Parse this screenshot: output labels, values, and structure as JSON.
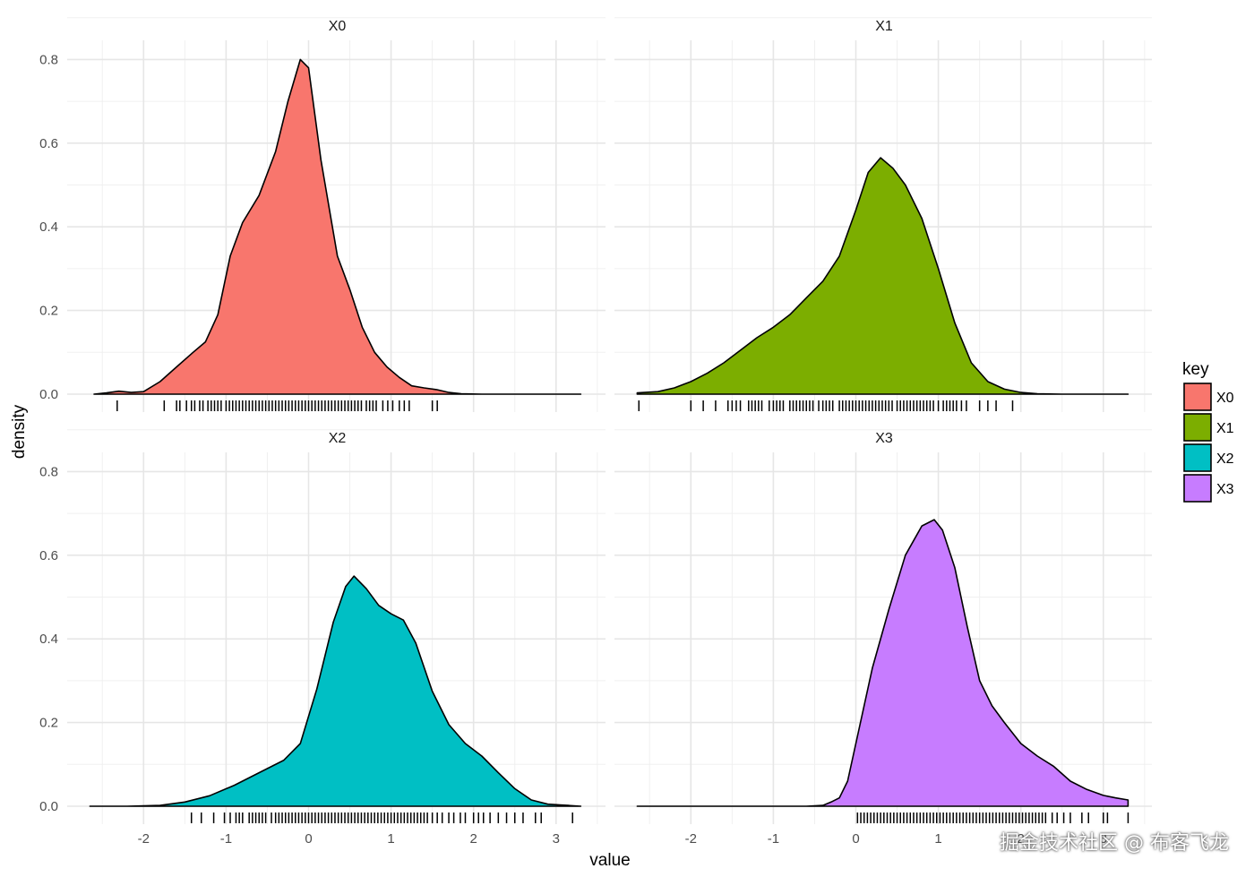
{
  "chart_data": {
    "type": "area",
    "xlabel": "value",
    "ylabel": "density",
    "xlim": [
      -2.65,
      3.3
    ],
    "ylim": [
      0,
      0.8
    ],
    "xticks": [
      -2,
      -1,
      0,
      1,
      2,
      3
    ],
    "xtick_labels": [
      "-2",
      "-1",
      "0",
      "1",
      "2",
      "3"
    ],
    "yticks": [
      0,
      0.2,
      0.4,
      0.6,
      0.8
    ],
    "ytick_labels": [
      "0.0",
      "0.2",
      "0.4",
      "0.6",
      "0.8"
    ],
    "grid": true,
    "legend": {
      "title": "key",
      "position": "right",
      "entries": [
        {
          "name": "X0",
          "color": "#F8766D"
        },
        {
          "name": "X1",
          "color": "#7CAE00"
        },
        {
          "name": "X2",
          "color": "#00BFC4"
        },
        {
          "name": "X3",
          "color": "#C77CFF"
        }
      ]
    },
    "panels": [
      {
        "name": "X0",
        "color": "#F8766D",
        "x": [
          -2.6,
          -2.45,
          -2.3,
          -2.15,
          -2.0,
          -1.8,
          -1.6,
          -1.4,
          -1.25,
          -1.1,
          -0.95,
          -0.8,
          -0.6,
          -0.4,
          -0.25,
          -0.1,
          0.0,
          0.15,
          0.35,
          0.5,
          0.65,
          0.8,
          0.95,
          1.1,
          1.25,
          1.4,
          1.55,
          1.7,
          1.85,
          2.1,
          2.5,
          3.3
        ],
        "y": [
          0.0,
          0.003,
          0.007,
          0.004,
          0.006,
          0.03,
          0.065,
          0.1,
          0.125,
          0.19,
          0.33,
          0.41,
          0.475,
          0.58,
          0.7,
          0.8,
          0.78,
          0.56,
          0.33,
          0.25,
          0.16,
          0.1,
          0.065,
          0.04,
          0.02,
          0.015,
          0.011,
          0.004,
          0.001,
          0.0,
          0.0,
          0.0
        ],
        "rug": [
          -2.32,
          -1.75,
          -1.6,
          -1.56,
          -1.48,
          -1.42,
          -1.38,
          -1.32,
          -1.28,
          -1.22,
          -1.18,
          -1.14,
          -1.1,
          -1.06,
          -1.0,
          -0.96,
          -0.92,
          -0.88,
          -0.84,
          -0.8,
          -0.76,
          -0.72,
          -0.68,
          -0.64,
          -0.6,
          -0.56,
          -0.52,
          -0.48,
          -0.44,
          -0.4,
          -0.36,
          -0.32,
          -0.28,
          -0.24,
          -0.2,
          -0.16,
          -0.12,
          -0.08,
          -0.04,
          0.0,
          0.04,
          0.08,
          0.12,
          0.16,
          0.2,
          0.24,
          0.28,
          0.32,
          0.36,
          0.4,
          0.44,
          0.48,
          0.52,
          0.56,
          0.6,
          0.64,
          0.7,
          0.74,
          0.78,
          0.82,
          0.9,
          0.96,
          1.02,
          1.1,
          1.16,
          1.22,
          1.5,
          1.56
        ]
      },
      {
        "name": "X1",
        "color": "#7CAE00",
        "x": [
          -2.65,
          -2.4,
          -2.2,
          -2.0,
          -1.8,
          -1.6,
          -1.4,
          -1.2,
          -1.0,
          -0.8,
          -0.6,
          -0.4,
          -0.2,
          0.0,
          0.15,
          0.3,
          0.45,
          0.6,
          0.8,
          1.0,
          1.2,
          1.4,
          1.6,
          1.8,
          2.0,
          2.2,
          2.5,
          3.3
        ],
        "y": [
          0.003,
          0.006,
          0.015,
          0.03,
          0.05,
          0.075,
          0.105,
          0.135,
          0.16,
          0.19,
          0.23,
          0.27,
          0.33,
          0.44,
          0.53,
          0.565,
          0.54,
          0.5,
          0.42,
          0.3,
          0.17,
          0.075,
          0.03,
          0.012,
          0.004,
          0.001,
          0.0,
          0.0
        ],
        "rug": [
          -2.63,
          -2.0,
          -1.85,
          -1.7,
          -1.55,
          -1.5,
          -1.45,
          -1.4,
          -1.3,
          -1.26,
          -1.22,
          -1.18,
          -1.14,
          -1.05,
          -1.0,
          -0.96,
          -0.92,
          -0.88,
          -0.8,
          -0.76,
          -0.72,
          -0.68,
          -0.64,
          -0.6,
          -0.56,
          -0.52,
          -0.45,
          -0.4,
          -0.36,
          -0.32,
          -0.28,
          -0.2,
          -0.16,
          -0.12,
          -0.08,
          -0.04,
          0.0,
          0.04,
          0.08,
          0.12,
          0.16,
          0.2,
          0.24,
          0.28,
          0.32,
          0.36,
          0.4,
          0.44,
          0.5,
          0.54,
          0.58,
          0.62,
          0.66,
          0.7,
          0.74,
          0.78,
          0.82,
          0.86,
          0.9,
          0.94,
          1.0,
          1.06,
          1.1,
          1.14,
          1.18,
          1.22,
          1.28,
          1.34,
          1.5,
          1.6,
          1.7,
          1.9
        ]
      },
      {
        "name": "X2",
        "color": "#00BFC4",
        "x": [
          -2.65,
          -2.2,
          -1.8,
          -1.5,
          -1.2,
          -0.9,
          -0.6,
          -0.3,
          -0.1,
          0.1,
          0.3,
          0.45,
          0.55,
          0.7,
          0.85,
          1.0,
          1.15,
          1.3,
          1.5,
          1.7,
          1.9,
          2.1,
          2.3,
          2.5,
          2.7,
          2.9,
          3.05,
          3.15,
          3.3
        ],
        "y": [
          0.0,
          0.0,
          0.002,
          0.01,
          0.025,
          0.05,
          0.08,
          0.11,
          0.15,
          0.28,
          0.44,
          0.525,
          0.55,
          0.52,
          0.48,
          0.46,
          0.445,
          0.39,
          0.275,
          0.195,
          0.15,
          0.12,
          0.08,
          0.042,
          0.015,
          0.005,
          0.003,
          0.002,
          0.0
        ],
        "rug": [
          -1.42,
          -1.3,
          -1.15,
          -1.02,
          -0.95,
          -0.88,
          -0.84,
          -0.8,
          -0.72,
          -0.68,
          -0.64,
          -0.6,
          -0.56,
          -0.52,
          -0.45,
          -0.4,
          -0.36,
          -0.32,
          -0.28,
          -0.24,
          -0.2,
          -0.16,
          -0.12,
          -0.08,
          -0.04,
          0.0,
          0.04,
          0.08,
          0.12,
          0.16,
          0.2,
          0.24,
          0.28,
          0.32,
          0.36,
          0.4,
          0.44,
          0.48,
          0.52,
          0.56,
          0.6,
          0.64,
          0.68,
          0.72,
          0.76,
          0.8,
          0.84,
          0.88,
          0.92,
          0.96,
          1.0,
          1.04,
          1.08,
          1.12,
          1.16,
          1.2,
          1.24,
          1.28,
          1.32,
          1.36,
          1.4,
          1.44,
          1.5,
          1.56,
          1.62,
          1.7,
          1.76,
          1.84,
          1.9,
          2.0,
          2.06,
          2.12,
          2.2,
          2.3,
          2.4,
          2.5,
          2.6,
          2.75,
          2.82,
          3.2
        ]
      },
      {
        "name": "X3",
        "color": "#C77CFF",
        "x": [
          -2.65,
          -0.6,
          -0.4,
          -0.3,
          -0.2,
          -0.1,
          0.0,
          0.2,
          0.4,
          0.6,
          0.8,
          0.95,
          1.05,
          1.2,
          1.35,
          1.5,
          1.65,
          1.8,
          2.0,
          2.2,
          2.4,
          2.6,
          2.8,
          3.0,
          3.15,
          3.3
        ],
        "y": [
          0.0,
          0.0,
          0.002,
          0.01,
          0.02,
          0.06,
          0.15,
          0.33,
          0.47,
          0.6,
          0.67,
          0.685,
          0.66,
          0.57,
          0.43,
          0.3,
          0.24,
          0.2,
          0.15,
          0.12,
          0.095,
          0.06,
          0.04,
          0.026,
          0.02,
          0.015
        ],
        "rug": [
          0.02,
          0.06,
          0.1,
          0.14,
          0.18,
          0.22,
          0.26,
          0.3,
          0.34,
          0.38,
          0.42,
          0.46,
          0.5,
          0.54,
          0.58,
          0.62,
          0.66,
          0.7,
          0.74,
          0.78,
          0.82,
          0.86,
          0.9,
          0.94,
          0.98,
          1.02,
          1.06,
          1.1,
          1.14,
          1.18,
          1.22,
          1.26,
          1.3,
          1.34,
          1.38,
          1.42,
          1.46,
          1.5,
          1.54,
          1.58,
          1.62,
          1.66,
          1.7,
          1.74,
          1.78,
          1.82,
          1.86,
          1.9,
          1.94,
          1.98,
          2.02,
          2.06,
          2.1,
          2.14,
          2.18,
          2.22,
          2.26,
          2.3,
          2.38,
          2.44,
          2.52,
          2.6,
          2.74,
          2.82,
          3.0,
          3.05,
          3.3
        ]
      }
    ]
  },
  "watermark": "掘金技术社区 @ 布客飞龙"
}
